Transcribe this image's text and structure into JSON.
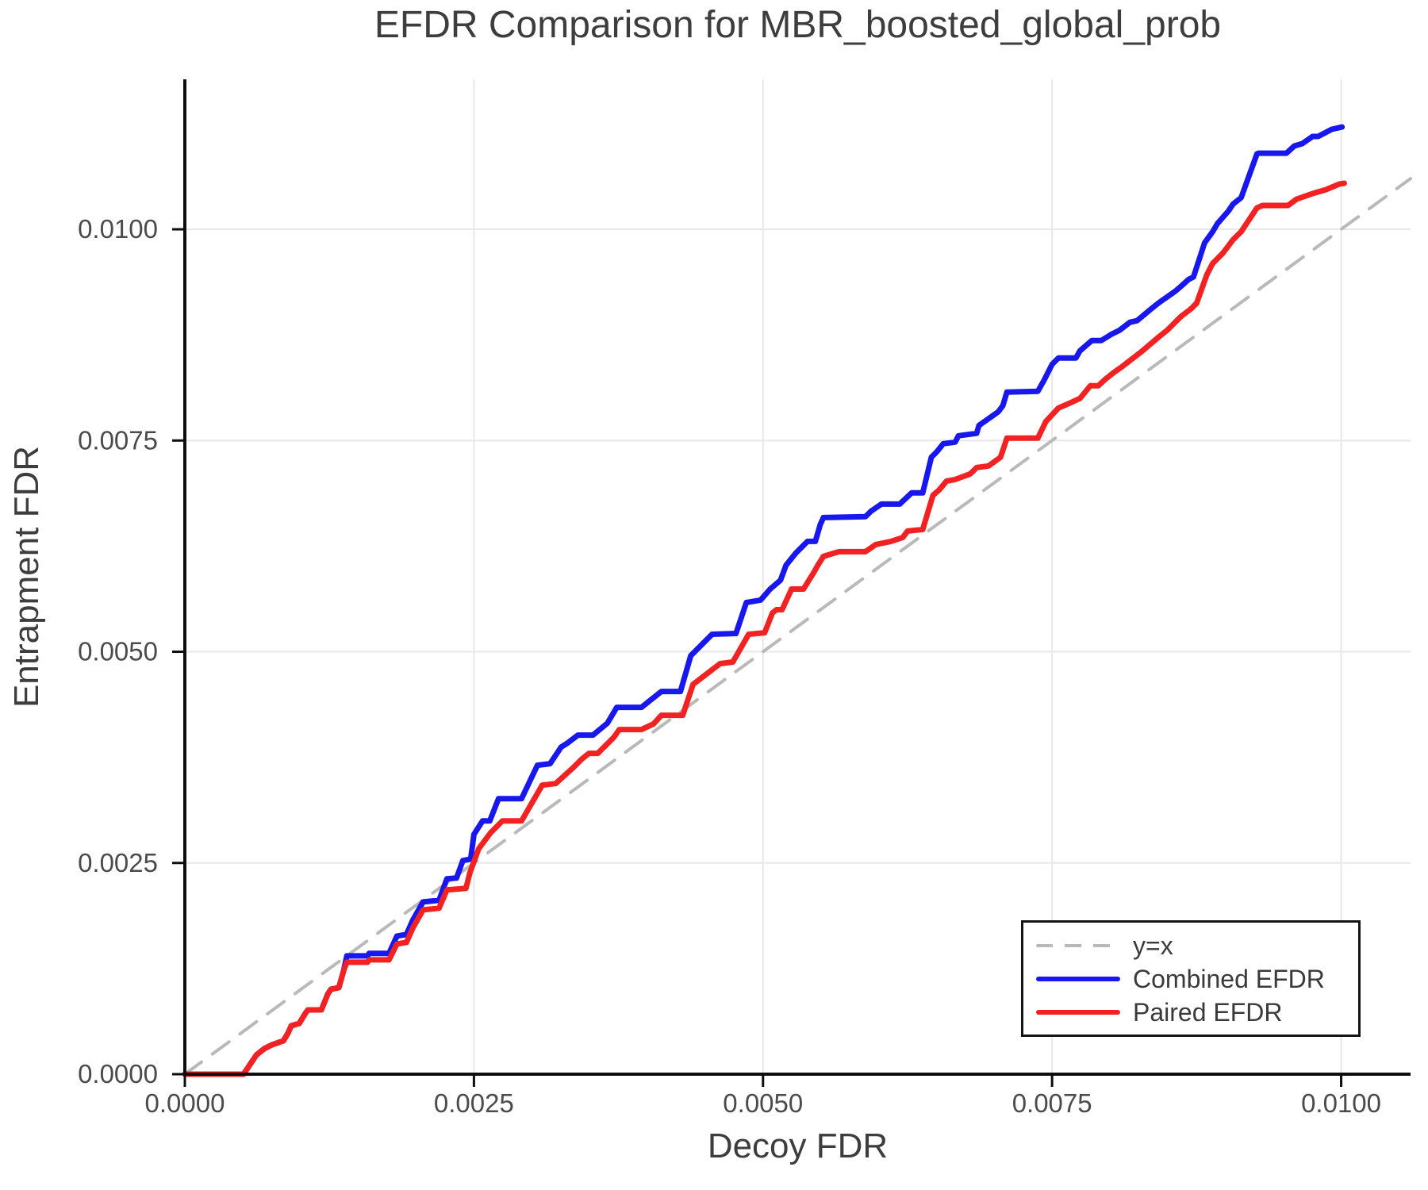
{
  "header": {
    "title": "EFDR Comparison for MBR_boosted_global_prob"
  },
  "axes": {
    "x": {
      "label": "Decoy FDR",
      "tick_labels": [
        "0.0000",
        "0.0025",
        "0.0050",
        "0.0075",
        "0.0100"
      ],
      "tick_values": [
        0,
        0.0025,
        0.005,
        0.0075,
        0.01
      ]
    },
    "y": {
      "label": "Entrapment FDR",
      "tick_labels": [
        "0.0000",
        "0.0025",
        "0.0050",
        "0.0075",
        "0.0100"
      ],
      "tick_values": [
        0,
        0.0025,
        0.005,
        0.0075,
        0.01
      ]
    }
  },
  "legend": {
    "items": [
      {
        "label": "y=x",
        "color": "#b9b9b9",
        "style": "dashed"
      },
      {
        "label": "Combined EFDR",
        "color": "#1717ee",
        "style": "solid"
      },
      {
        "label": "Paired EFDR",
        "color": "#f32222",
        "style": "solid"
      }
    ]
  },
  "colors": {
    "grid": "#e8e8e8",
    "spine": "#0d0d0d",
    "tick_text": "#4b4b4b",
    "title_text": "#3d3d3d",
    "diagonal": "#b9b9b9",
    "combined": "#1717ee",
    "paired": "#f32222"
  },
  "chart_data": {
    "type": "line",
    "title": "EFDR Comparison for MBR_boosted_global_prob",
    "xlabel": "Decoy FDR",
    "ylabel": "Entrapment FDR",
    "xlim": [
      0,
      0.0106
    ],
    "ylim": [
      0,
      0.011775
    ],
    "grid": true,
    "legend_position": "lower right",
    "series": [
      {
        "name": "y=x",
        "color": "#b9b9b9",
        "style": "dashed",
        "points": [
          [
            0,
            0
          ],
          [
            0.0106,
            0.0106
          ]
        ]
      },
      {
        "name": "Combined EFDR",
        "color": "#1717ee",
        "style": "solid",
        "points": [
          [
            0.0,
            0.0
          ],
          [
            0.000508,
            0.0
          ],
          [
            0.000618,
            0.000226
          ],
          [
            0.000687,
            0.000301
          ],
          [
            0.000755,
            0.000348
          ],
          [
            0.000852,
            0.000395
          ],
          [
            0.000893,
            0.000489
          ],
          [
            0.00092,
            0.000573
          ],
          [
            0.000989,
            0.000601
          ],
          [
            0.001044,
            0.000724
          ],
          [
            0.001065,
            0.000761
          ],
          [
            0.001181,
            0.000761
          ],
          [
            0.001236,
            0.000949
          ],
          [
            0.001264,
            0.001006
          ],
          [
            0.001332,
            0.001024
          ],
          [
            0.001374,
            0.001231
          ],
          [
            0.001401,
            0.0014
          ],
          [
            0.00158,
            0.0014
          ],
          [
            0.001594,
            0.001429
          ],
          [
            0.001765,
            0.001429
          ],
          [
            0.001834,
            0.001635
          ],
          [
            0.001916,
            0.001654
          ],
          [
            0.001971,
            0.001823
          ],
          [
            0.00206,
            0.002039
          ],
          [
            0.002198,
            0.002058
          ],
          [
            0.002266,
            0.002312
          ],
          [
            0.002349,
            0.002321
          ],
          [
            0.002404,
            0.002528
          ],
          [
            0.002472,
            0.002547
          ],
          [
            0.0025,
            0.002838
          ],
          [
            0.002575,
            0.002998
          ],
          [
            0.002637,
            0.002998
          ],
          [
            0.002713,
            0.003261
          ],
          [
            0.002912,
            0.003261
          ],
          [
            0.003049,
            0.003656
          ],
          [
            0.003159,
            0.003675
          ],
          [
            0.003255,
            0.003872
          ],
          [
            0.00331,
            0.003919
          ],
          [
            0.0034,
            0.004013
          ],
          [
            0.00353,
            0.004013
          ],
          [
            0.003654,
            0.004154
          ],
          [
            0.003736,
            0.004342
          ],
          [
            0.003949,
            0.004342
          ],
          [
            0.004052,
            0.004455
          ],
          [
            0.004121,
            0.00453
          ],
          [
            0.004286,
            0.00453
          ],
          [
            0.004375,
            0.004953
          ],
          [
            0.00456,
            0.005207
          ],
          [
            0.004766,
            0.005216
          ],
          [
            0.004856,
            0.005583
          ],
          [
            0.004979,
            0.005611
          ],
          [
            0.005062,
            0.005742
          ],
          [
            0.005151,
            0.005846
          ],
          [
            0.005199,
            0.006024
          ],
          [
            0.005282,
            0.006165
          ],
          [
            0.005385,
            0.006306
          ],
          [
            0.005453,
            0.006306
          ],
          [
            0.005495,
            0.006504
          ],
          [
            0.005522,
            0.006588
          ],
          [
            0.005886,
            0.006598
          ],
          [
            0.005934,
            0.006663
          ],
          [
            0.006024,
            0.006748
          ],
          [
            0.006182,
            0.006748
          ],
          [
            0.006285,
            0.00688
          ],
          [
            0.006381,
            0.00688
          ],
          [
            0.006456,
            0.007303
          ],
          [
            0.006504,
            0.007368
          ],
          [
            0.006559,
            0.007462
          ],
          [
            0.006662,
            0.007481
          ],
          [
            0.00669,
            0.007556
          ],
          [
            0.006848,
            0.007585
          ],
          [
            0.006868,
            0.007679
          ],
          [
            0.007033,
            0.007838
          ],
          [
            0.007074,
            0.007913
          ],
          [
            0.007109,
            0.008073
          ],
          [
            0.007377,
            0.008083
          ],
          [
            0.007431,
            0.008214
          ],
          [
            0.0075,
            0.008402
          ],
          [
            0.007555,
            0.008477
          ],
          [
            0.007706,
            0.008477
          ],
          [
            0.007741,
            0.008562
          ],
          [
            0.007844,
            0.008684
          ],
          [
            0.007926,
            0.008684
          ],
          [
            0.008015,
            0.008759
          ],
          [
            0.008084,
            0.008806
          ],
          [
            0.008173,
            0.0089
          ],
          [
            0.008235,
            0.008919
          ],
          [
            0.008359,
            0.00906
          ],
          [
            0.008427,
            0.009135
          ],
          [
            0.008565,
            0.009267
          ],
          [
            0.008613,
            0.009323
          ],
          [
            0.008682,
            0.009408
          ],
          [
            0.008723,
            0.009436
          ],
          [
            0.008819,
            0.00984
          ],
          [
            0.008888,
            0.009971
          ],
          [
            0.008929,
            0.010065
          ],
          [
            0.009025,
            0.010216
          ],
          [
            0.009066,
            0.0103
          ],
          [
            0.009135,
            0.010375
          ],
          [
            0.009272,
            0.010892
          ],
          [
            0.009286,
            0.010901
          ],
          [
            0.009527,
            0.010901
          ],
          [
            0.009595,
            0.010986
          ],
          [
            0.009664,
            0.011014
          ],
          [
            0.009753,
            0.011099
          ],
          [
            0.009801,
            0.011099
          ],
          [
            0.009918,
            0.011183
          ],
          [
            0.010007,
            0.011211
          ]
        ]
      },
      {
        "name": "Paired EFDR",
        "color": "#f32222",
        "style": "solid",
        "points": [
          [
            0.0,
            0.0
          ],
          [
            0.000508,
            0.0
          ],
          [
            0.000618,
            0.000226
          ],
          [
            0.000687,
            0.000301
          ],
          [
            0.000755,
            0.000348
          ],
          [
            0.000852,
            0.000395
          ],
          [
            0.000893,
            0.000489
          ],
          [
            0.00092,
            0.000573
          ],
          [
            0.000989,
            0.000601
          ],
          [
            0.001044,
            0.000724
          ],
          [
            0.001065,
            0.000761
          ],
          [
            0.001181,
            0.000761
          ],
          [
            0.001236,
            0.000949
          ],
          [
            0.001264,
            0.001006
          ],
          [
            0.001332,
            0.001024
          ],
          [
            0.001374,
            0.001231
          ],
          [
            0.001401,
            0.001325
          ],
          [
            0.00158,
            0.001325
          ],
          [
            0.001594,
            0.001353
          ],
          [
            0.001765,
            0.001353
          ],
          [
            0.001834,
            0.001541
          ],
          [
            0.001916,
            0.00156
          ],
          [
            0.001971,
            0.001729
          ],
          [
            0.00206,
            0.001945
          ],
          [
            0.002198,
            0.001964
          ],
          [
            0.002266,
            0.00218
          ],
          [
            0.002431,
            0.002199
          ],
          [
            0.002466,
            0.002387
          ],
          [
            0.002541,
            0.002669
          ],
          [
            0.002644,
            0.002857
          ],
          [
            0.002747,
            0.002998
          ],
          [
            0.002912,
            0.002998
          ],
          [
            0.00309,
            0.003421
          ],
          [
            0.003207,
            0.00344
          ],
          [
            0.003365,
            0.003637
          ],
          [
            0.003434,
            0.003731
          ],
          [
            0.003495,
            0.003797
          ],
          [
            0.003571,
            0.003797
          ],
          [
            0.003708,
            0.003985
          ],
          [
            0.003757,
            0.004079
          ],
          [
            0.003949,
            0.004079
          ],
          [
            0.004052,
            0.004145
          ],
          [
            0.004121,
            0.004248
          ],
          [
            0.004306,
            0.004248
          ],
          [
            0.004395,
            0.004614
          ],
          [
            0.004629,
            0.004859
          ],
          [
            0.004739,
            0.004878
          ],
          [
            0.004876,
            0.005207
          ],
          [
            0.005014,
            0.005225
          ],
          [
            0.005082,
            0.00546
          ],
          [
            0.005117,
            0.005498
          ],
          [
            0.005165,
            0.005498
          ],
          [
            0.005247,
            0.005742
          ],
          [
            0.00535,
            0.005742
          ],
          [
            0.00544,
            0.00594
          ],
          [
            0.005474,
            0.006024
          ],
          [
            0.005522,
            0.006128
          ],
          [
            0.005611,
            0.006165
          ],
          [
            0.005659,
            0.006184
          ],
          [
            0.005886,
            0.006184
          ],
          [
            0.005975,
            0.006269
          ],
          [
            0.006106,
            0.006306
          ],
          [
            0.006209,
            0.006353
          ],
          [
            0.00625,
            0.006428
          ],
          [
            0.006381,
            0.006447
          ],
          [
            0.00647,
            0.006851
          ],
          [
            0.006525,
            0.006917
          ],
          [
            0.006587,
            0.00702
          ],
          [
            0.006662,
            0.007039
          ],
          [
            0.006793,
            0.007105
          ],
          [
            0.006848,
            0.00718
          ],
          [
            0.006951,
            0.007199
          ],
          [
            0.007054,
            0.007303
          ],
          [
            0.007109,
            0.007528
          ],
          [
            0.007377,
            0.007528
          ],
          [
            0.007446,
            0.007725
          ],
          [
            0.007555,
            0.007885
          ],
          [
            0.007652,
            0.007942
          ],
          [
            0.007741,
            0.007998
          ],
          [
            0.00783,
            0.008148
          ],
          [
            0.007899,
            0.008148
          ],
          [
            0.007967,
            0.008233
          ],
          [
            0.008036,
            0.008308
          ],
          [
            0.008105,
            0.008374
          ],
          [
            0.008221,
            0.008496
          ],
          [
            0.00829,
            0.008571
          ],
          [
            0.008427,
            0.008731
          ],
          [
            0.008496,
            0.008806
          ],
          [
            0.008613,
            0.008966
          ],
          [
            0.008702,
            0.00906
          ],
          [
            0.00875,
            0.009126
          ],
          [
            0.008839,
            0.009464
          ],
          [
            0.008888,
            0.009596
          ],
          [
            0.008977,
            0.009718
          ],
          [
            0.009066,
            0.009878
          ],
          [
            0.009135,
            0.009972
          ],
          [
            0.009272,
            0.010253
          ],
          [
            0.00932,
            0.010282
          ],
          [
            0.00954,
            0.010282
          ],
          [
            0.009615,
            0.010357
          ],
          [
            0.009753,
            0.010423
          ],
          [
            0.009869,
            0.01047
          ],
          [
            0.009986,
            0.010536
          ],
          [
            0.010027,
            0.010545
          ]
        ]
      }
    ]
  }
}
